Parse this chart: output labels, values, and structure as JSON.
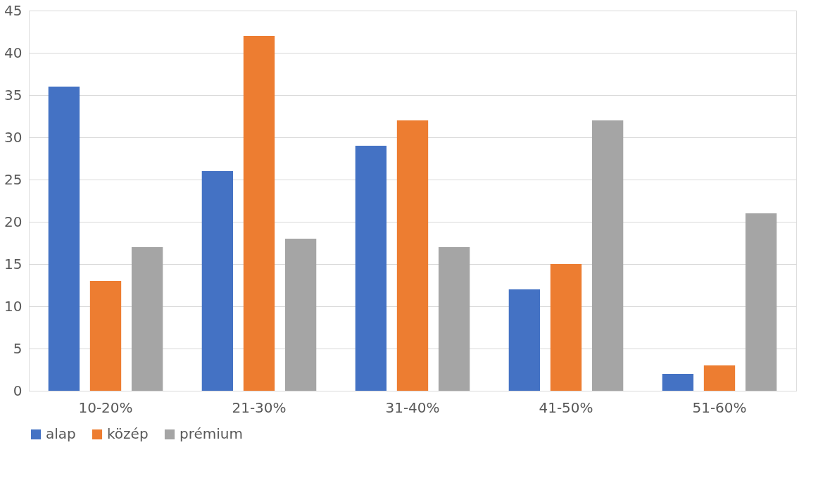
{
  "chart_data": {
    "type": "bar",
    "categories": [
      "10-20%",
      "21-30%",
      "31-40%",
      "41-50%",
      "51-60%"
    ],
    "series": [
      {
        "name": "alap",
        "color": "#4472c4",
        "values": [
          36,
          26,
          29,
          12,
          2
        ]
      },
      {
        "name": "közép",
        "color": "#ed7d31",
        "values": [
          13,
          42,
          32,
          15,
          3
        ]
      },
      {
        "name": "prémium",
        "color": "#a5a5a5",
        "values": [
          17,
          18,
          17,
          32,
          21
        ]
      }
    ],
    "ylim": [
      0,
      45
    ],
    "yticks": [
      0,
      5,
      10,
      15,
      20,
      25,
      30,
      35,
      40,
      45
    ],
    "grid": "y",
    "legend": "bottom"
  }
}
